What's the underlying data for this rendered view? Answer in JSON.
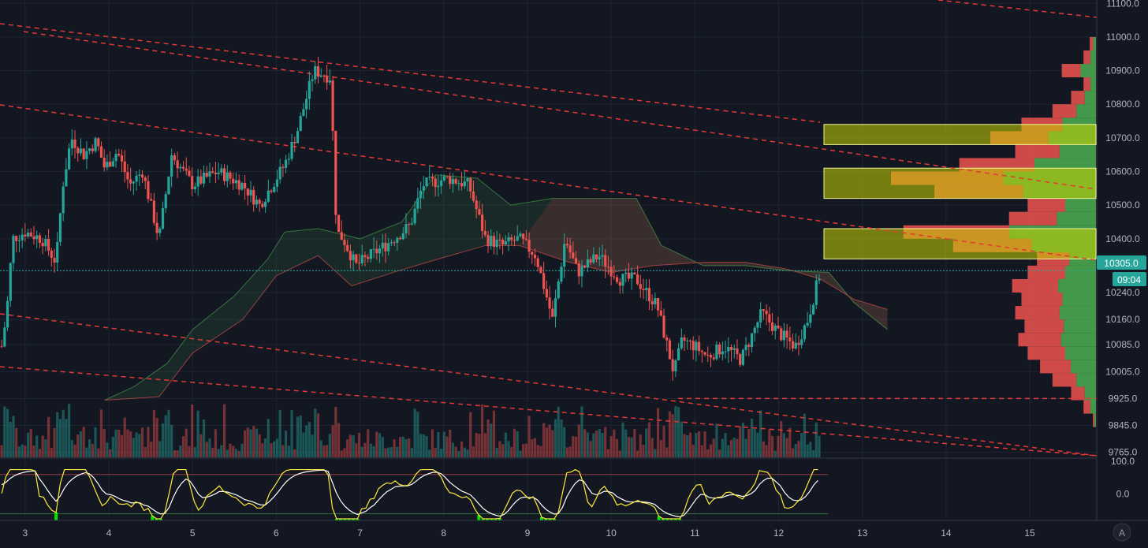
{
  "chart_data": {
    "type": "candlestick",
    "price_axis": {
      "ticks": [
        9765.0,
        9845.0,
        9925.0,
        10005.0,
        10085.0,
        10160.0,
        10240.0,
        10305.0,
        10400.0,
        10500.0,
        10600.0,
        10700.0,
        10800.0,
        10900.0,
        11000.0,
        11100.0
      ],
      "tick_labels": [
        "9765.0",
        "9845.0",
        "9925.0",
        "10005.0",
        "10085.0",
        "10160.0",
        "10240.0",
        "10400.0",
        "10500.0",
        "10600.0",
        "10700.0",
        "10800.0",
        "10900.0",
        "11000.0",
        "11100.0"
      ],
      "range": [
        9750,
        11110
      ]
    },
    "time_axis": {
      "ticks": [
        3,
        4,
        5,
        6,
        7,
        8,
        9,
        10,
        11,
        12,
        13,
        14,
        15
      ],
      "tick_labels": [
        "3",
        "4",
        "5",
        "6",
        "7",
        "8",
        "9",
        "10",
        "11",
        "12",
        "13",
        "14",
        "15"
      ],
      "range": [
        2.7,
        15.8
      ]
    },
    "current_price": {
      "value": 10305.0,
      "label": "10305.0",
      "countdown": "09:04",
      "color": "#26a69a"
    },
    "price_path": [
      [
        2.72,
        10080
      ],
      [
        2.78,
        10180
      ],
      [
        2.85,
        10400
      ],
      [
        3.0,
        10420
      ],
      [
        3.2,
        10400
      ],
      [
        3.37,
        10330
      ],
      [
        3.45,
        10560
      ],
      [
        3.55,
        10700
      ],
      [
        3.7,
        10650
      ],
      [
        3.85,
        10690
      ],
      [
        3.95,
        10610
      ],
      [
        4.1,
        10660
      ],
      [
        4.25,
        10560
      ],
      [
        4.4,
        10600
      ],
      [
        4.6,
        10400
      ],
      [
        4.75,
        10650
      ],
      [
        5.0,
        10560
      ],
      [
        5.3,
        10600
      ],
      [
        5.6,
        10560
      ],
      [
        5.8,
        10500
      ],
      [
        6.1,
        10620
      ],
      [
        6.25,
        10720
      ],
      [
        6.45,
        10900
      ],
      [
        6.65,
        10880
      ],
      [
        6.72,
        10420
      ],
      [
        6.8,
        10400
      ],
      [
        6.95,
        10320
      ],
      [
        7.3,
        10380
      ],
      [
        7.6,
        10440
      ],
      [
        7.75,
        10560
      ],
      [
        8.05,
        10580
      ],
      [
        8.3,
        10560
      ],
      [
        8.5,
        10400
      ],
      [
        8.7,
        10380
      ],
      [
        8.9,
        10400
      ],
      [
        9.1,
        10350
      ],
      [
        9.3,
        10160
      ],
      [
        9.45,
        10400
      ],
      [
        9.6,
        10300
      ],
      [
        9.85,
        10350
      ],
      [
        10.1,
        10280
      ],
      [
        10.3,
        10280
      ],
      [
        10.55,
        10200
      ],
      [
        10.75,
        10000
      ],
      [
        10.85,
        10100
      ],
      [
        11.0,
        10080
      ],
      [
        11.15,
        10050
      ],
      [
        11.35,
        10080
      ],
      [
        11.55,
        10040
      ],
      [
        11.8,
        10180
      ],
      [
        12.0,
        10120
      ],
      [
        12.2,
        10080
      ],
      [
        12.35,
        10160
      ],
      [
        12.5,
        10305
      ]
    ],
    "volume_profile": {
      "buckets": [
        [
          9860,
          5
        ],
        [
          9900,
          20
        ],
        [
          9940,
          40
        ],
        [
          9980,
          70
        ],
        [
          10020,
          90
        ],
        [
          10060,
          110
        ],
        [
          10100,
          125
        ],
        [
          10140,
          115
        ],
        [
          10180,
          130
        ],
        [
          10220,
          120
        ],
        [
          10260,
          135
        ],
        [
          10300,
          110
        ],
        [
          10340,
          95
        ],
        [
          10380,
          230
        ],
        [
          10420,
          310
        ],
        [
          10460,
          140
        ],
        [
          10500,
          110
        ],
        [
          10540,
          260
        ],
        [
          10580,
          330
        ],
        [
          10620,
          220
        ],
        [
          10660,
          130
        ],
        [
          10700,
          170
        ],
        [
          10740,
          120
        ],
        [
          10780,
          70
        ],
        [
          10820,
          40
        ],
        [
          10860,
          20
        ],
        [
          10900,
          55
        ],
        [
          10940,
          20
        ],
        [
          10980,
          10
        ]
      ],
      "value_area_zones": [
        [
          10680,
          10740
        ],
        [
          10520,
          10610
        ],
        [
          10340,
          10430
        ]
      ]
    },
    "ichimoku_cloud": {
      "span_a": [
        [
          3.95,
          9920
        ],
        [
          4.3,
          9960
        ],
        [
          4.7,
          10030
        ],
        [
          5.0,
          10130
        ],
        [
          5.5,
          10230
        ],
        [
          5.9,
          10340
        ],
        [
          6.1,
          10420
        ],
        [
          6.5,
          10430
        ],
        [
          7.0,
          10400
        ],
        [
          7.5,
          10450
        ],
        [
          7.9,
          10590
        ],
        [
          8.4,
          10580
        ],
        [
          8.8,
          10500
        ],
        [
          9.3,
          10520
        ],
        [
          9.7,
          10520
        ],
        [
          10.3,
          10520
        ],
        [
          10.6,
          10380
        ],
        [
          11.1,
          10320
        ],
        [
          11.6,
          10320
        ],
        [
          12.1,
          10305
        ],
        [
          12.6,
          10300
        ],
        [
          12.9,
          10210
        ],
        [
          13.3,
          10130
        ]
      ],
      "span_b": [
        [
          3.95,
          9920
        ],
        [
          4.6,
          9930
        ],
        [
          5.0,
          10060
        ],
        [
          5.6,
          10160
        ],
        [
          6.0,
          10290
        ],
        [
          6.5,
          10350
        ],
        [
          6.9,
          10260
        ],
        [
          7.4,
          10300
        ],
        [
          7.8,
          10330
        ],
        [
          8.5,
          10380
        ],
        [
          8.9,
          10380
        ],
        [
          9.5,
          10330
        ],
        [
          10.0,
          10300
        ],
        [
          10.5,
          10320
        ],
        [
          11.1,
          10330
        ],
        [
          11.6,
          10330
        ],
        [
          12.1,
          10310
        ],
        [
          12.5,
          10280
        ],
        [
          12.9,
          10220
        ],
        [
          13.3,
          10190
        ]
      ]
    },
    "trend_lines_count": 6,
    "support_line": {
      "value": 9925,
      "from": 10.8,
      "to": 15.8
    },
    "oscillator": {
      "ticks": [
        100.0,
        0.0
      ],
      "tick_labels": [
        "100.0",
        "0.0"
      ],
      "range": [
        -80,
        110
      ],
      "upper_band": 60,
      "lower_band": -60
    },
    "colors": {
      "background": "#131722",
      "up": "#26a69a",
      "down": "#ef5350",
      "trend": "#e53935",
      "zone": "#c8d400",
      "profile_buy": "#4caf50",
      "profile_sell": "#ef5350",
      "osc_fast": "#ffeb3b",
      "osc_slow": "#ffffff"
    }
  },
  "footer": {
    "auto_label": "A"
  }
}
